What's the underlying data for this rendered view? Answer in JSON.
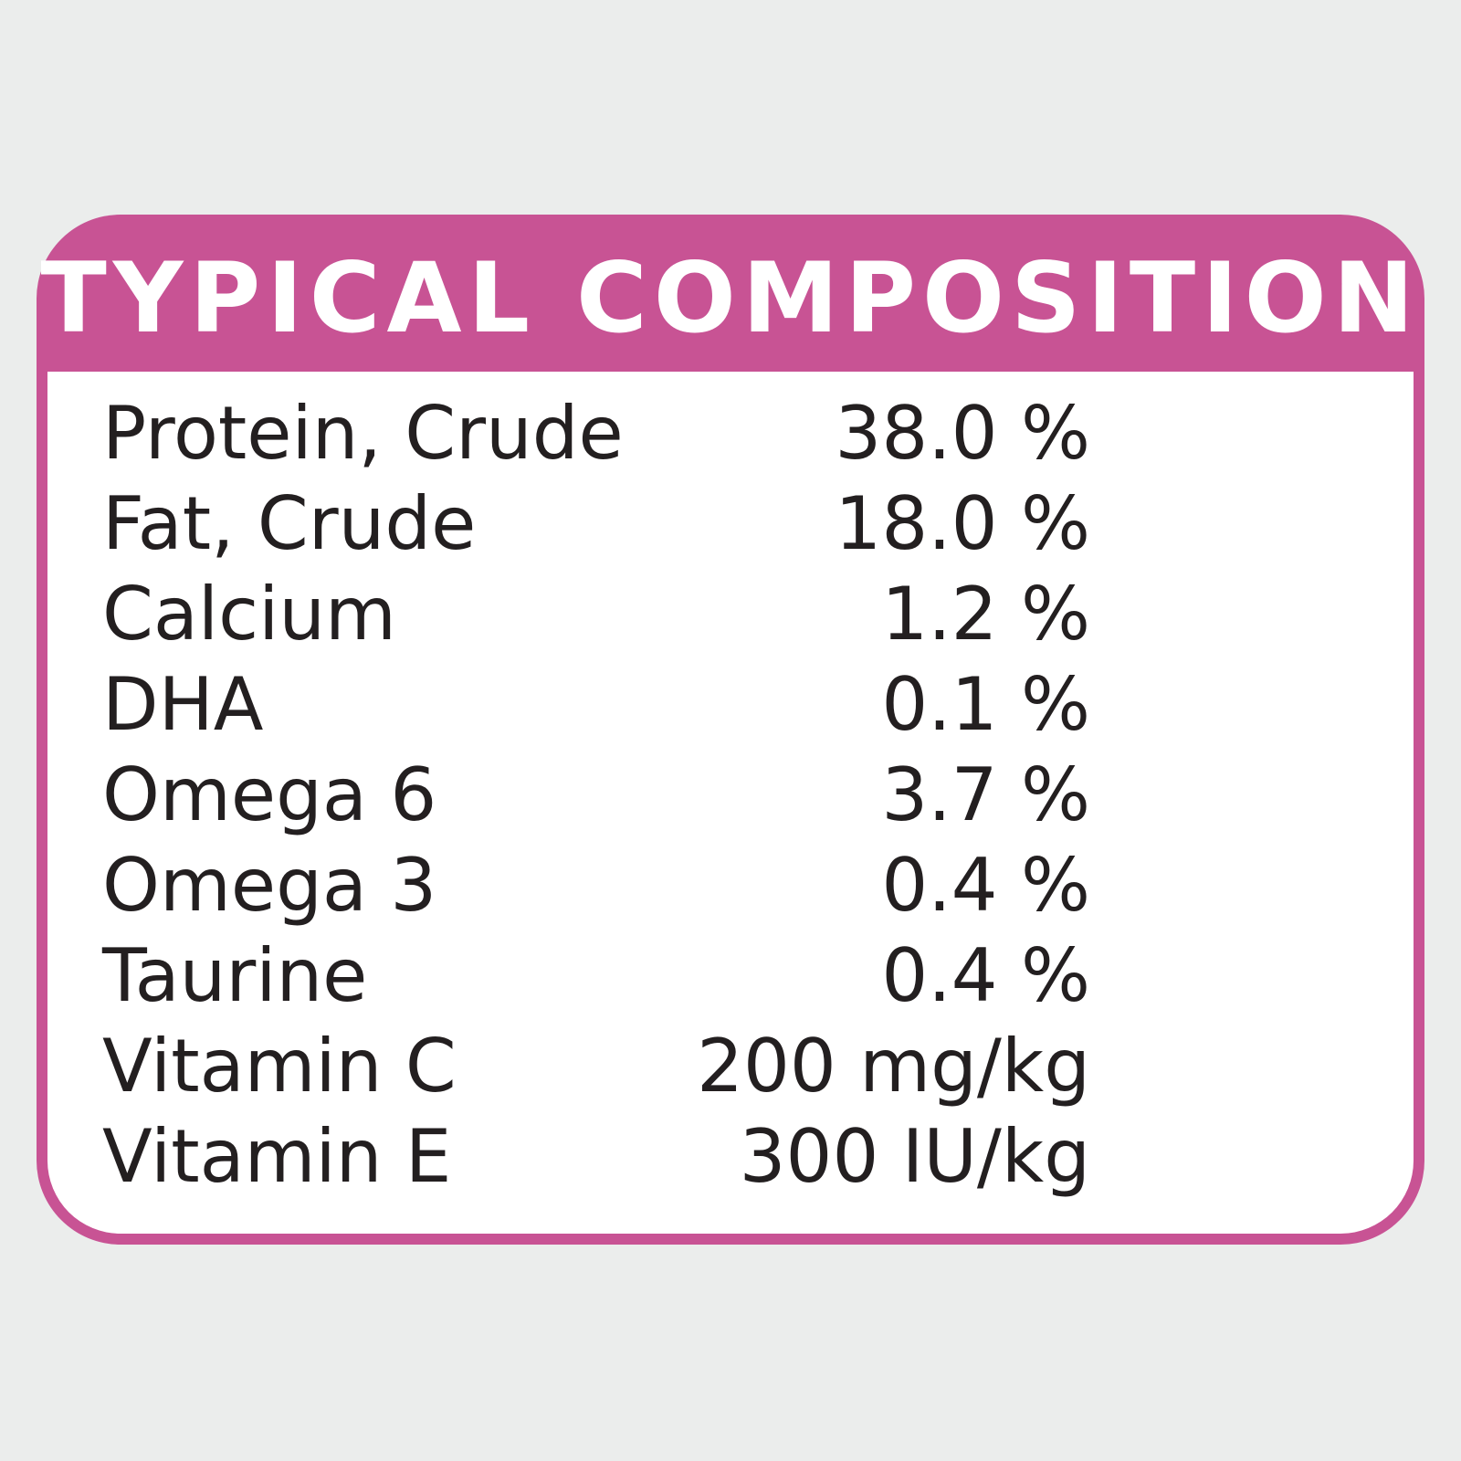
{
  "title": "TYPICAL COMPOSITION",
  "colors": {
    "background": "#ebedec",
    "accent": "#c85394",
    "panel": "#ffffff",
    "text": "#231f20"
  },
  "rows": [
    {
      "label": "Protein, Crude",
      "value": "38.0 %"
    },
    {
      "label": "Fat, Crude",
      "value": "18.0 %"
    },
    {
      "label": "Calcium",
      "value": "1.2 %"
    },
    {
      "label": "DHA",
      "value": "0.1 %"
    },
    {
      "label": "Omega 6",
      "value": "3.7 %"
    },
    {
      "label": "Omega 3",
      "value": "0.4 %"
    },
    {
      "label": "Taurine",
      "value": "0.4 %"
    },
    {
      "label": "Vitamin C",
      "value": "200 mg/kg"
    },
    {
      "label": "Vitamin E",
      "value": "300 IU/kg"
    }
  ]
}
